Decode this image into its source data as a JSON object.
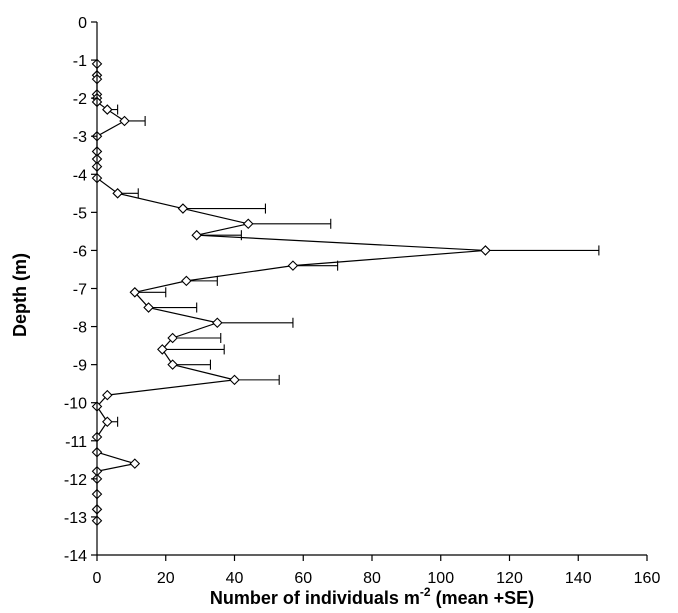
{
  "chart_data": {
    "type": "line",
    "xlabel_main": "Number of individuals m",
    "xlabel_sup": "-2",
    "xlabel_suffix": " (mean +SE)",
    "ylabel": "Depth (m)",
    "xlim": [
      0,
      160
    ],
    "ylim": [
      -14,
      0
    ],
    "xticks": [
      0,
      20,
      40,
      60,
      80,
      100,
      120,
      140,
      160
    ],
    "yticks": [
      0,
      -1,
      -2,
      -3,
      -4,
      -5,
      -6,
      -7,
      -8,
      -9,
      -10,
      -11,
      -12,
      -13,
      -14
    ],
    "grid": false,
    "points": [
      {
        "x": 0,
        "y": -1.1,
        "err": 0
      },
      {
        "x": 0,
        "y": -1.4,
        "err": 0
      },
      {
        "x": 0,
        "y": -1.5,
        "err": 0
      },
      {
        "x": 0,
        "y": -1.9,
        "err": 0
      },
      {
        "x": 0,
        "y": -2.0,
        "err": 0
      },
      {
        "x": 0,
        "y": -2.1,
        "err": 0
      },
      {
        "x": 3,
        "y": -2.3,
        "err": 3
      },
      {
        "x": 8,
        "y": -2.6,
        "err": 6
      },
      {
        "x": 0,
        "y": -3.0,
        "err": 0
      },
      {
        "x": 0,
        "y": -3.4,
        "err": 0
      },
      {
        "x": 0,
        "y": -3.6,
        "err": 0
      },
      {
        "x": 0,
        "y": -3.8,
        "err": 0
      },
      {
        "x": 0,
        "y": -4.1,
        "err": 0
      },
      {
        "x": 6,
        "y": -4.5,
        "err": 6
      },
      {
        "x": 25,
        "y": -4.9,
        "err": 24
      },
      {
        "x": 44,
        "y": -5.3,
        "err": 24
      },
      {
        "x": 29,
        "y": -5.6,
        "err": 13
      },
      {
        "x": 113,
        "y": -6.0,
        "err": 33
      },
      {
        "x": 57,
        "y": -6.4,
        "err": 13
      },
      {
        "x": 26,
        "y": -6.8,
        "err": 9
      },
      {
        "x": 11,
        "y": -7.1,
        "err": 9
      },
      {
        "x": 15,
        "y": -7.5,
        "err": 14
      },
      {
        "x": 35,
        "y": -7.9,
        "err": 22
      },
      {
        "x": 22,
        "y": -8.3,
        "err": 14
      },
      {
        "x": 19,
        "y": -8.6,
        "err": 18
      },
      {
        "x": 22,
        "y": -9.0,
        "err": 11
      },
      {
        "x": 40,
        "y": -9.4,
        "err": 13
      },
      {
        "x": 3,
        "y": -9.8,
        "err": 0
      },
      {
        "x": 0,
        "y": -10.1,
        "err": 0
      },
      {
        "x": 3,
        "y": -10.5,
        "err": 3
      },
      {
        "x": 0,
        "y": -10.9,
        "err": 0
      },
      {
        "x": 0,
        "y": -11.3,
        "err": 0
      },
      {
        "x": 11,
        "y": -11.6,
        "err": 0
      },
      {
        "x": 0,
        "y": -11.8,
        "err": 0
      },
      {
        "x": 0,
        "y": -12.0,
        "err": 0
      },
      {
        "x": 0,
        "y": -12.4,
        "err": 0
      },
      {
        "x": 0,
        "y": -12.8,
        "err": 0
      },
      {
        "x": 0,
        "y": -13.1,
        "err": 0
      }
    ]
  }
}
